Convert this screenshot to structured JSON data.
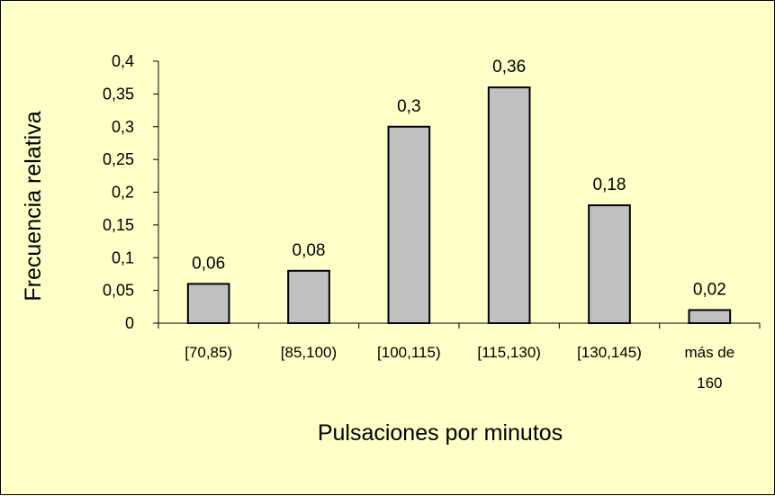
{
  "chart_data": {
    "type": "bar",
    "categories": [
      "[70,85)",
      "[85,100)",
      "[100,115)",
      "[115,130)",
      "[130,145)",
      "más de 160"
    ],
    "values": [
      0.06,
      0.08,
      0.3,
      0.36,
      0.18,
      0.02
    ],
    "data_labels": [
      "0,06",
      "0,08",
      "0,3",
      "0,36",
      "0,18",
      "0,02"
    ],
    "title": "",
    "xlabel": "Pulsaciones por minutos",
    "ylabel": "Frecuencia relativa",
    "ylim": [
      0,
      0.4
    ],
    "yticks": [
      0,
      0.05,
      0.1,
      0.15,
      0.2,
      0.25,
      0.3,
      0.35,
      0.4
    ],
    "ytick_labels": [
      "0",
      "0,05",
      "0,1",
      "0,15",
      "0,2",
      "0,25",
      "0,3",
      "0,35",
      "0,4"
    ],
    "grid": false,
    "legend": "none",
    "colors": {
      "background": "#ffffc8",
      "bar_fill": "#c0c0c0",
      "bar_stroke": "#000000"
    }
  }
}
